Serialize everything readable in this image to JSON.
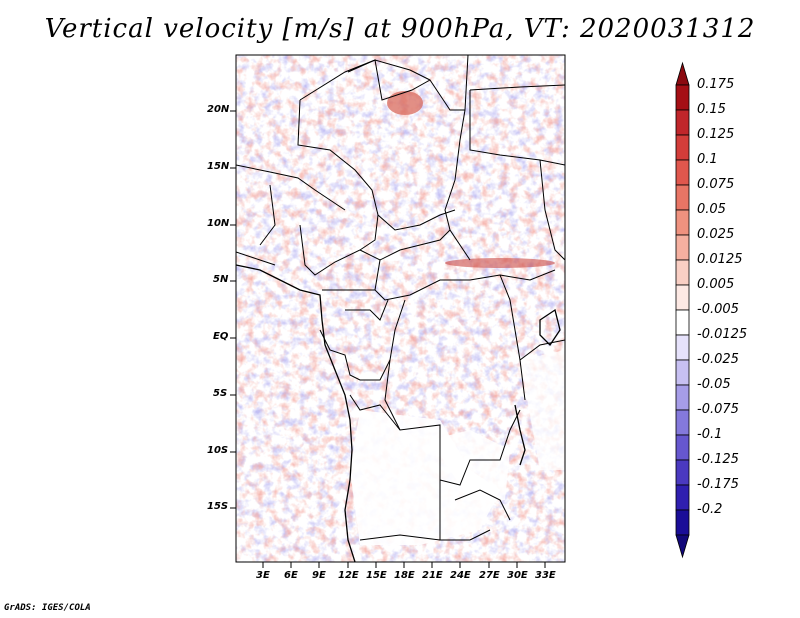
{
  "title": "Vertical velocity [m/s] at 900hPa, VT: 2020031312",
  "footer": "GrADS: IGES/COLA",
  "map": {
    "lat_labels": [
      "20N",
      "15N",
      "10N",
      "5N",
      "EQ",
      "5S",
      "10S",
      "15S"
    ],
    "lon_labels": [
      "3E",
      "6E",
      "9E",
      "12E",
      "15E",
      "18E",
      "21E",
      "24E",
      "27E",
      "30E",
      "33E"
    ]
  },
  "colorbar": {
    "labels": [
      "0.175",
      "0.15",
      "0.125",
      "0.1",
      "0.075",
      "0.05",
      "0.025",
      "0.0125",
      "0.005",
      "-0.005",
      "-0.0125",
      "-0.025",
      "-0.05",
      "-0.075",
      "-0.1",
      "-0.125",
      "-0.175",
      "-0.2"
    ],
    "colors": [
      "#a50f15",
      "#c0262b",
      "#d33d3a",
      "#e0574d",
      "#e87565",
      "#ef927f",
      "#f5b0a0",
      "#f9cfc4",
      "#fde9e4",
      "#ffffff",
      "#e6e2fb",
      "#c7c0f2",
      "#a69de8",
      "#8479dc",
      "#6657cf",
      "#4a39c0",
      "#2f1fb0",
      "#1a0d98"
    ],
    "top_color": "#8b0a10",
    "bottom_color": "#12087a"
  },
  "colors": {
    "border": "#000000",
    "positive": "#e8806f",
    "negative": "#8f88e6"
  }
}
